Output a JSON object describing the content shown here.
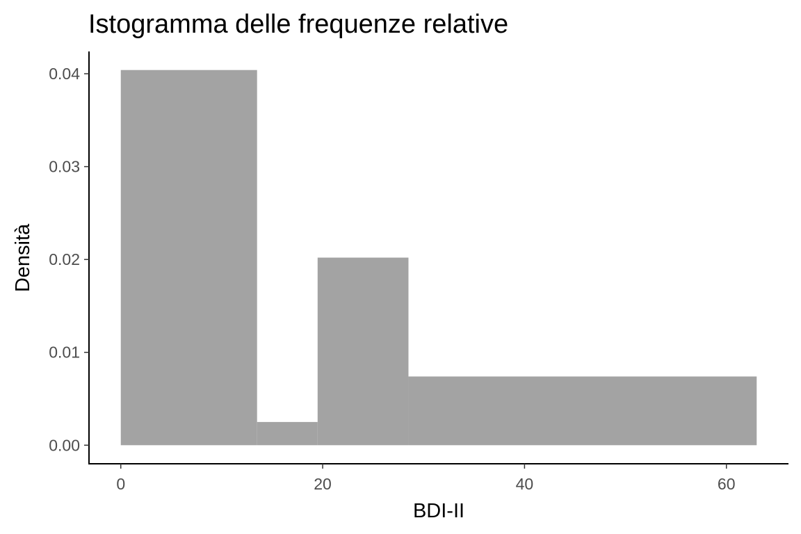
{
  "chart_data": {
    "type": "histogram",
    "title": "Istogramma delle frequenze relative",
    "xlabel": "BDI-II",
    "ylabel": "Densità",
    "bins": [
      {
        "x0": 0,
        "x1": 13.5,
        "density": 0.0404
      },
      {
        "x0": 13.5,
        "x1": 19.5,
        "density": 0.0025
      },
      {
        "x0": 19.5,
        "x1": 28.5,
        "density": 0.0202
      },
      {
        "x0": 28.5,
        "x1": 63,
        "density": 0.0074
      }
    ],
    "xlim": [
      -3.15,
      66.15
    ],
    "ylim": [
      -0.002,
      0.0424
    ],
    "x_ticks": [
      0,
      20,
      40,
      60
    ],
    "x_tick_labels": [
      "0",
      "20",
      "40",
      "60"
    ],
    "y_ticks": [
      0,
      0.01,
      0.02,
      0.03,
      0.04
    ],
    "y_tick_labels": [
      "0.00",
      "0.01",
      "0.02",
      "0.03",
      "0.04"
    ],
    "bar_color": "#a3a3a3",
    "grid": false,
    "legend": "none"
  }
}
